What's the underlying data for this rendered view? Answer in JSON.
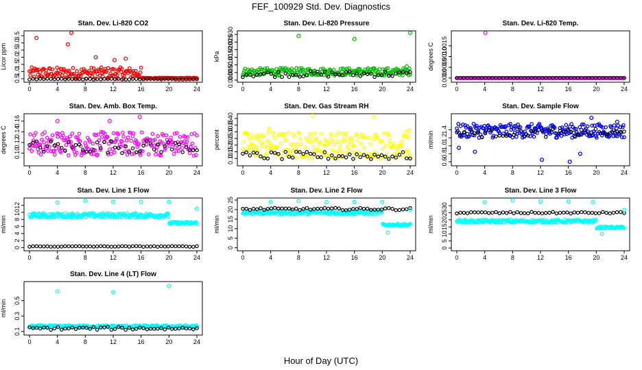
{
  "figure": {
    "title": "FEF_100929  Std. Dev. Diagnostics",
    "xlabel": "Hour of Day (UTC)"
  },
  "chart_data": [
    {
      "type": "scatter",
      "title": "Stan. Dev. Li-820 CO2",
      "ylabel": "Licor ppm",
      "color": "#ff0000",
      "xlim": [
        0,
        24
      ],
      "ylim": [
        0.4,
        3.7
      ],
      "xticks": [
        "0",
        "4",
        "8",
        "12",
        "16",
        "20",
        "24"
      ],
      "yticks": [
        "0.5",
        "1.0",
        "1.5",
        "2.0",
        "2.5",
        "3.0",
        "3.5"
      ],
      "main": {
        "band_lo": 0.5,
        "band_hi": 1.3,
        "end_level": 0.55,
        "fade_hour": 16
      },
      "black": {
        "level": 0.47,
        "spread": 0.03
      },
      "outliers": [
        [
          6.0,
          3.7
        ],
        [
          1.0,
          3.35
        ],
        [
          13.8,
          1.9
        ],
        [
          12.2,
          1.8
        ],
        [
          9.5,
          2.0
        ],
        [
          5.5,
          2.9
        ]
      ]
    },
    {
      "type": "scatter",
      "title": "Stan. Dev. Li-820 Pressure",
      "ylabel": "kPa",
      "color": "#00c000",
      "xlim": [
        0,
        24
      ],
      "ylim": [
        0,
        0.031
      ],
      "xticks": [
        "0",
        "4",
        "8",
        "12",
        "16",
        "20",
        "24"
      ],
      "yticks": [
        "0.000",
        "0.005",
        "0.010",
        "0.015",
        "0.020",
        "0.025",
        "0.030"
      ],
      "main": {
        "band_lo": 0.003,
        "band_hi": 0.008,
        "end_level": 0.007,
        "fade_hour": 24
      },
      "black": {
        "level": 0.004,
        "spread": 0.002
      },
      "outliers": [
        [
          8.0,
          0.029
        ],
        [
          16.0,
          0.027
        ],
        [
          24.0,
          0.031
        ],
        [
          23.5,
          0.009
        ]
      ]
    },
    {
      "type": "scatter",
      "title": "Stan. Dev. Li-820 Temp.",
      "ylabel": "degrees C",
      "color": "#ff00ff",
      "xlim": [
        0,
        24
      ],
      "ylim": [
        -0.0001,
        0.0021
      ],
      "xticks": [
        "0",
        "4",
        "8",
        "12",
        "16",
        "20",
        "24"
      ],
      "yticks": [
        "0.0000",
        "0.0005",
        "0.0010",
        "0.0015"
      ],
      "main": {
        "band_lo": 0.0,
        "band_hi": 0.0,
        "end_level": 0.0,
        "fade_hour": 24
      },
      "black": {
        "level": 0.0,
        "spread": 0.0
      },
      "outliers": [
        [
          4.1,
          0.0021
        ]
      ]
    },
    {
      "type": "scatter",
      "title": "Stan. Dev. Amb. Box Temp.",
      "ylabel": "degrees C",
      "color": "#ff00ff",
      "xlim": [
        0,
        24
      ],
      "ylim": [
        0.08,
        0.17
      ],
      "xticks": [
        "0",
        "4",
        "8",
        "12",
        "16",
        "20",
        "24"
      ],
      "yticks": [
        "0.10",
        "0.12",
        "0.14",
        "0.16"
      ],
      "main": {
        "band_lo": 0.095,
        "band_hi": 0.14,
        "end_level": 0.115,
        "fade_hour": 24
      },
      "black": {
        "level": 0.112,
        "spread": 0.012
      },
      "outliers": [
        [
          15.8,
          0.168
        ],
        [
          11.5,
          0.16
        ],
        [
          4.0,
          0.16
        ]
      ]
    },
    {
      "type": "scatter",
      "title": "Stan. Dev. Gas Stream RH",
      "ylabel": "percent",
      "color": "#ffff00",
      "xlim": [
        0,
        24
      ],
      "ylim": [
        0.06,
        0.42
      ],
      "xticks": [
        "0",
        "4",
        "8",
        "12",
        "16",
        "20",
        "24"
      ],
      "yticks": [
        "0.10",
        "0.15",
        "0.20",
        "0.25",
        "0.30",
        "0.35",
        "0.40"
      ],
      "main": {
        "band_lo": 0.1,
        "band_hi": 0.3,
        "end_level": 0.14,
        "fade_hour": 24
      },
      "black": {
        "level": 0.12,
        "spread": 0.03
      },
      "outliers": [
        [
          10.0,
          0.42
        ],
        [
          18.8,
          0.41
        ],
        [
          23.8,
          0.31
        ],
        [
          3.8,
          0.32
        ],
        [
          2.0,
          0.27
        ]
      ]
    },
    {
      "type": "scatter",
      "title": "Stan. Dev. Sample Flow",
      "ylabel": "ml/min",
      "color": "#0000ff",
      "xlim": [
        0,
        24
      ],
      "ylim": [
        0.55,
        1.75
      ],
      "xticks": [
        "0",
        "4",
        "8",
        "12",
        "16",
        "20",
        "24"
      ],
      "yticks": [
        "0.6",
        "0.8",
        "1.0",
        "1.2",
        "1.4"
      ],
      "main": {
        "band_lo": 1.2,
        "band_hi": 1.55,
        "end_level": 1.3,
        "fade_hour": 24
      },
      "black": {
        "level": 1.32,
        "spread": 0.1
      },
      "outliers": [
        [
          16.2,
          0.6
        ],
        [
          12.2,
          0.65
        ],
        [
          0.3,
          0.95
        ],
        [
          2.6,
          0.85
        ],
        [
          19.3,
          1.7
        ],
        [
          23.0,
          1.6
        ],
        [
          17.7,
          0.8
        ]
      ]
    },
    {
      "type": "scatter",
      "title": "Stan. Dev. Line 1 Flow",
      "ylabel": "ml/min",
      "color": "#00ffff",
      "xlim": [
        0,
        24
      ],
      "ylim": [
        -0.3,
        13.5
      ],
      "xticks": [
        "0",
        "4",
        "8",
        "12",
        "16",
        "20",
        "24"
      ],
      "yticks": [
        "0",
        "2",
        "4",
        "6",
        "8",
        "10",
        "12"
      ],
      "main": {
        "band_lo": 8.5,
        "band_hi": 9.8,
        "end_level": 7.0,
        "fade_hour": 20
      },
      "black": {
        "level": 0.35,
        "spread": 0.1
      },
      "outliers": [
        [
          4.0,
          12.8
        ],
        [
          8.0,
          13.3
        ],
        [
          12.0,
          13.0
        ],
        [
          16.0,
          13.0
        ],
        [
          20.0,
          13.0
        ],
        [
          24.0,
          11.0
        ]
      ]
    },
    {
      "type": "scatter",
      "title": "Stan. Dev. Line 2 Flow",
      "ylabel": "ml/min",
      "color": "#00ffff",
      "xlim": [
        0,
        24
      ],
      "ylim": [
        -0.5,
        25
      ],
      "xticks": [
        "0",
        "4",
        "8",
        "12",
        "16",
        "20",
        "24"
      ],
      "yticks": [
        "0",
        "5",
        "10",
        "15",
        "20",
        "25"
      ],
      "main": {
        "band_lo": 17.5,
        "band_hi": 19.5,
        "end_level": 12.0,
        "fade_hour": 20
      },
      "black": {
        "level": 20.3,
        "spread": 0.6
      },
      "outliers": [
        [
          4.0,
          24.0
        ],
        [
          8.0,
          24.5
        ],
        [
          12.0,
          24.0
        ],
        [
          16.0,
          24.0
        ],
        [
          20.0,
          24.0
        ],
        [
          20.8,
          8.0
        ],
        [
          24.0,
          20.0
        ]
      ]
    },
    {
      "type": "scatter",
      "title": "Stan. Dev. Line 3 Flow",
      "ylabel": "ml/min",
      "color": "#00ffff",
      "xlim": [
        0,
        24
      ],
      "ylim": [
        -0.5,
        34
      ],
      "xticks": [
        "0",
        "4",
        "8",
        "12",
        "16",
        "20",
        "24"
      ],
      "yticks": [
        "0",
        "5",
        "10",
        "15",
        "20",
        "25",
        "30"
      ],
      "main": {
        "band_lo": 18.0,
        "band_hi": 20.0,
        "end_level": 14.5,
        "fade_hour": 20
      },
      "black": {
        "level": 25.0,
        "spread": 0.6
      },
      "outliers": [
        [
          4.0,
          32.5
        ],
        [
          8.0,
          34.0
        ],
        [
          12.0,
          33.0
        ],
        [
          16.0,
          33.0
        ],
        [
          19.5,
          32.5
        ],
        [
          20.8,
          10.0
        ],
        [
          24.0,
          27.0
        ]
      ]
    },
    {
      "type": "scatter",
      "title": "Stan. Dev. Line 4 (LT) Flow",
      "ylabel": "ml/min",
      "color": "#00ffff",
      "xlim": [
        0,
        24
      ],
      "ylim": [
        0.08,
        0.72
      ],
      "xticks": [
        "0",
        "4",
        "8",
        "12",
        "16",
        "20",
        "24"
      ],
      "yticks": [
        "0.1",
        "0.3",
        "0.5"
      ],
      "main": {
        "band_lo": 0.15,
        "band_hi": 0.18,
        "end_level": 0.17,
        "fade_hour": 24
      },
      "black": {
        "level": 0.14,
        "spread": 0.02
      },
      "outliers": [
        [
          4.0,
          0.62
        ],
        [
          12.0,
          0.61
        ],
        [
          20.0,
          0.69
        ]
      ]
    }
  ]
}
